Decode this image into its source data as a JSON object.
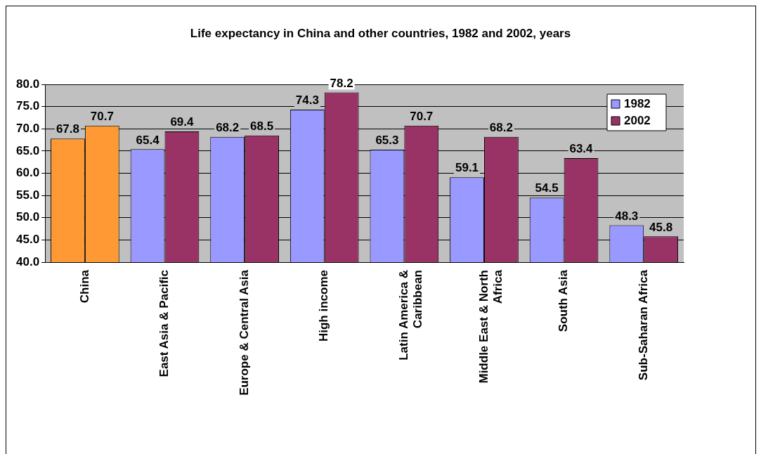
{
  "chart_data": {
    "type": "bar",
    "title": "Life expectancy in China and other countries, 1982 and 2002, years",
    "categories": [
      "China",
      "East Asia & Pacific",
      "Europe & Central Asia",
      "High income",
      "Latin America & Caribbean",
      "Middle East & North Africa",
      "South Asia",
      "Sub-Saharan Africa"
    ],
    "series": [
      {
        "name": "1982",
        "color": "#9999ff",
        "colors": [
          "#ff9933",
          "#9999ff",
          "#9999ff",
          "#9999ff",
          "#9999ff",
          "#9999ff",
          "#9999ff",
          "#9999ff"
        ],
        "values": [
          67.8,
          65.4,
          68.2,
          74.3,
          65.3,
          59.1,
          54.5,
          48.3
        ]
      },
      {
        "name": "2002",
        "color": "#993366",
        "colors": [
          "#ff9933",
          "#993366",
          "#993366",
          "#993366",
          "#993366",
          "#993366",
          "#993366",
          "#993366"
        ],
        "values": [
          70.7,
          69.4,
          68.5,
          78.2,
          70.7,
          68.2,
          63.4,
          45.8
        ]
      }
    ],
    "ylim": [
      40,
      80
    ],
    "yticks": [
      {
        "value": 40,
        "label": "40.0"
      },
      {
        "value": 45,
        "label": "45.0"
      },
      {
        "value": 50,
        "label": "50.0"
      },
      {
        "value": 55,
        "label": "55.0"
      },
      {
        "value": 60,
        "label": "60.0"
      },
      {
        "value": 65,
        "label": "65.0"
      },
      {
        "value": 70,
        "label": "70.0"
      },
      {
        "value": 75,
        "label": "75.0"
      },
      {
        "value": 80,
        "label": "80.0"
      }
    ],
    "grid": "y",
    "legend": "top right",
    "data_labels": true
  }
}
